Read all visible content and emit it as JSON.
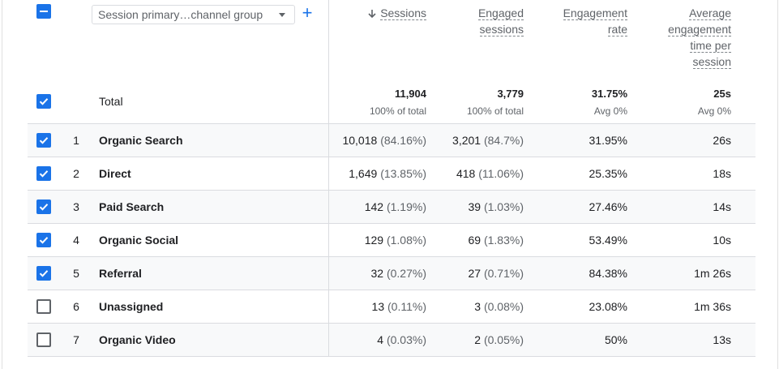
{
  "header": {
    "dimension_label": "Session primary…channel group",
    "plus_label": "+",
    "columns": [
      {
        "key": "sessions",
        "lines": [
          "Sessions"
        ],
        "sorted": true
      },
      {
        "key": "engaged_sessions",
        "lines": [
          "Engaged",
          "sessions"
        ]
      },
      {
        "key": "engagement_rate",
        "lines": [
          "Engagement",
          "rate"
        ]
      },
      {
        "key": "avg_engagement_time",
        "lines": [
          "Average",
          "engagement",
          "time per",
          "session"
        ]
      }
    ]
  },
  "total": {
    "label": "Total",
    "sessions": {
      "value": "11,904",
      "sub": "100% of total"
    },
    "engaged_sessions": {
      "value": "3,779",
      "sub": "100% of total"
    },
    "engagement_rate": {
      "value": "31.75%",
      "sub": "Avg 0%"
    },
    "avg_engagement_time": {
      "value": "25s",
      "sub": "Avg 0%"
    }
  },
  "rows": [
    {
      "num": "1",
      "name": "Organic Search",
      "checked": true,
      "sessions": "10,018",
      "sessions_pct": "(84.16%)",
      "engaged": "3,201",
      "engaged_pct": "(84.7%)",
      "rate": "31.95%",
      "time": "26s"
    },
    {
      "num": "2",
      "name": "Direct",
      "checked": true,
      "sessions": "1,649",
      "sessions_pct": "(13.85%)",
      "engaged": "418",
      "engaged_pct": "(11.06%)",
      "rate": "25.35%",
      "time": "18s"
    },
    {
      "num": "3",
      "name": "Paid Search",
      "checked": true,
      "sessions": "142",
      "sessions_pct": "(1.19%)",
      "engaged": "39",
      "engaged_pct": "(1.03%)",
      "rate": "27.46%",
      "time": "14s"
    },
    {
      "num": "4",
      "name": "Organic Social",
      "checked": true,
      "sessions": "129",
      "sessions_pct": "(1.08%)",
      "engaged": "69",
      "engaged_pct": "(1.83%)",
      "rate": "53.49%",
      "time": "10s"
    },
    {
      "num": "5",
      "name": "Referral",
      "checked": true,
      "sessions": "32",
      "sessions_pct": "(0.27%)",
      "engaged": "27",
      "engaged_pct": "(0.71%)",
      "rate": "84.38%",
      "time": "1m 26s"
    },
    {
      "num": "6",
      "name": "Unassigned",
      "checked": false,
      "sessions": "13",
      "sessions_pct": "(0.11%)",
      "engaged": "3",
      "engaged_pct": "(0.08%)",
      "rate": "23.08%",
      "time": "1m 36s"
    },
    {
      "num": "7",
      "name": "Organic Video",
      "checked": false,
      "sessions": "4",
      "sessions_pct": "(0.03%)",
      "engaged": "2",
      "engaged_pct": "(0.05%)",
      "rate": "50%",
      "time": "13s"
    }
  ],
  "colors": {
    "accent": "#1a73e8",
    "divider": "#dadce0",
    "muted": "#5f6368"
  }
}
